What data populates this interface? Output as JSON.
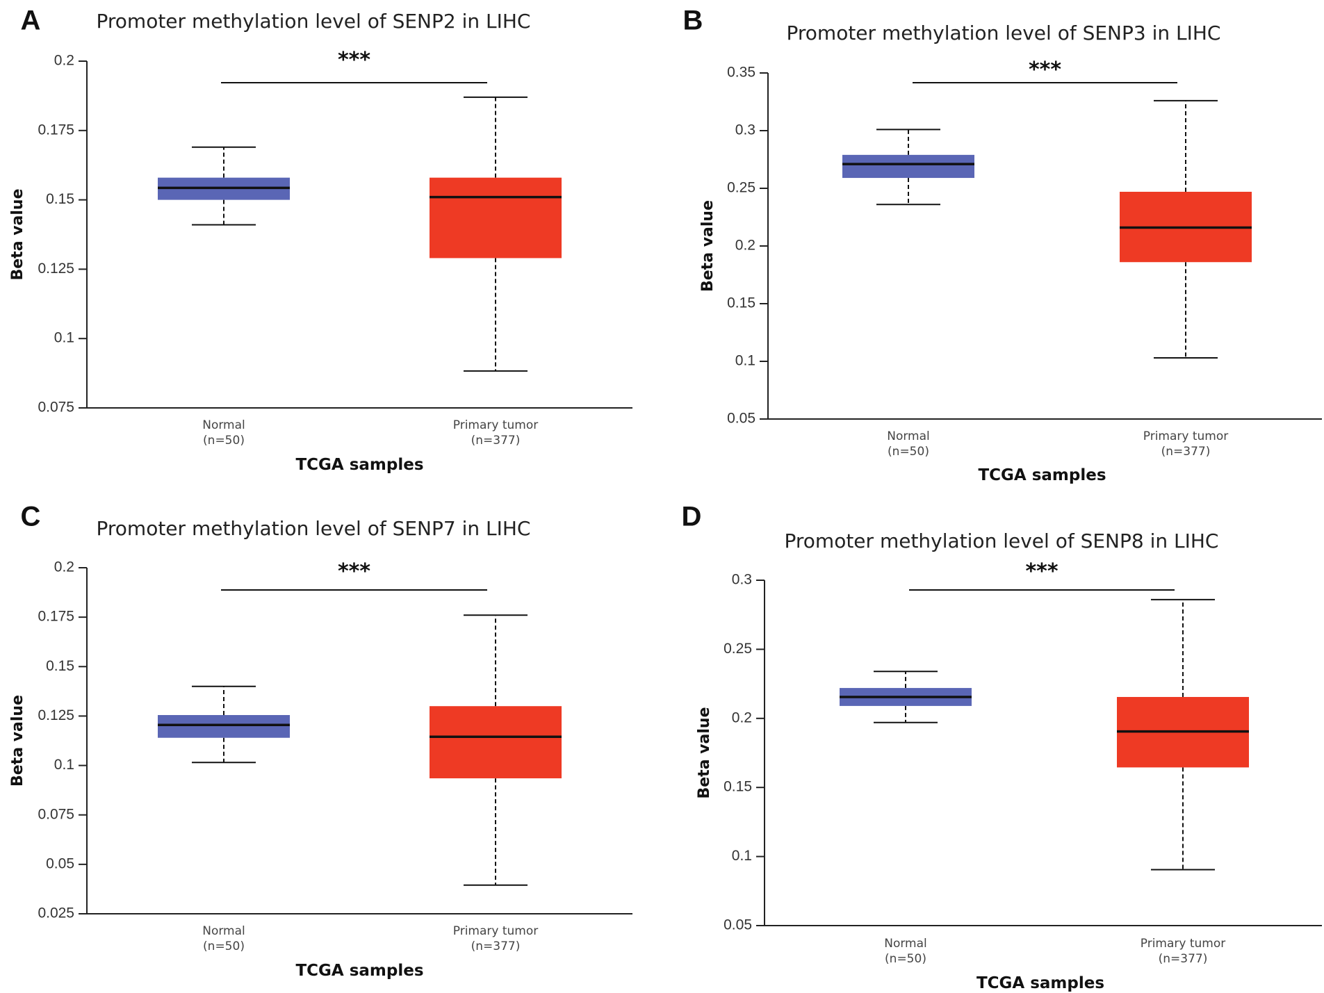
{
  "colors": {
    "normal_box": "#5a66b5",
    "tumor_box": "#ee3a24",
    "line": "#111111",
    "axis": "#222222"
  },
  "chart_data": [
    {
      "panel": "A",
      "type": "box",
      "title": "Promoter methylation level of SENP2 in LIHC",
      "xlabel": "TCGA samples",
      "ylabel": "Beta value",
      "ylim": [
        0.075,
        0.2
      ],
      "ticks": [
        "0.075",
        "0.1",
        "0.125",
        "0.15",
        "0.175",
        "0.2"
      ],
      "significance": "***",
      "groups": [
        {
          "name": "Normal",
          "n_label": "(n=50)",
          "min": 0.141,
          "q1": 0.15,
          "median": 0.1543,
          "q3": 0.158,
          "max": 0.169
        },
        {
          "name": "Primary tumor",
          "n_label": "(n=377)",
          "min": 0.0883,
          "q1": 0.129,
          "median": 0.151,
          "q3": 0.158,
          "max": 0.187
        }
      ]
    },
    {
      "panel": "B",
      "type": "box",
      "title": "Promoter methylation level of SENP3 in LIHC",
      "xlabel": "TCGA samples",
      "ylabel": "Beta value",
      "ylim": [
        0.05,
        0.35
      ],
      "ticks": [
        "0.05",
        "0.1",
        "0.15",
        "0.2",
        "0.25",
        "0.3",
        "0.35"
      ],
      "significance": "***",
      "groups": [
        {
          "name": "Normal",
          "n_label": "(n=50)",
          "min": 0.236,
          "q1": 0.259,
          "median": 0.271,
          "q3": 0.279,
          "max": 0.301
        },
        {
          "name": "Primary tumor",
          "n_label": "(n=377)",
          "min": 0.103,
          "q1": 0.186,
          "median": 0.216,
          "q3": 0.247,
          "max": 0.326
        }
      ]
    },
    {
      "panel": "C",
      "type": "box",
      "title": "Promoter methylation level of SENP7 in LIHC",
      "xlabel": "TCGA samples",
      "ylabel": "Beta value",
      "ylim": [
        0.025,
        0.2
      ],
      "ticks": [
        "0.025",
        "0.05",
        "0.075",
        "0.1",
        "0.125",
        "0.15",
        "0.175",
        "0.2"
      ],
      "significance": "***",
      "groups": [
        {
          "name": "Normal",
          "n_label": "(n=50)",
          "min": 0.1015,
          "q1": 0.114,
          "median": 0.1205,
          "q3": 0.1255,
          "max": 0.14
        },
        {
          "name": "Primary tumor",
          "n_label": "(n=377)",
          "min": 0.0395,
          "q1": 0.0935,
          "median": 0.1145,
          "q3": 0.13,
          "max": 0.176
        }
      ]
    },
    {
      "panel": "D",
      "type": "box",
      "title": "Promoter methylation level of SENP8 in LIHC",
      "xlabel": "TCGA samples",
      "ylabel": "Beta value",
      "ylim": [
        0.05,
        0.3
      ],
      "ticks": [
        "0.05",
        "0.1",
        "0.15",
        "0.2",
        "0.25",
        "0.3"
      ],
      "significance": "***",
      "groups": [
        {
          "name": "Normal",
          "n_label": "(n=50)",
          "min": 0.197,
          "q1": 0.209,
          "median": 0.2155,
          "q3": 0.222,
          "max": 0.234
        },
        {
          "name": "Primary tumor",
          "n_label": "(n=377)",
          "min": 0.0905,
          "q1": 0.1645,
          "median": 0.1905,
          "q3": 0.2155,
          "max": 0.286
        }
      ]
    }
  ]
}
